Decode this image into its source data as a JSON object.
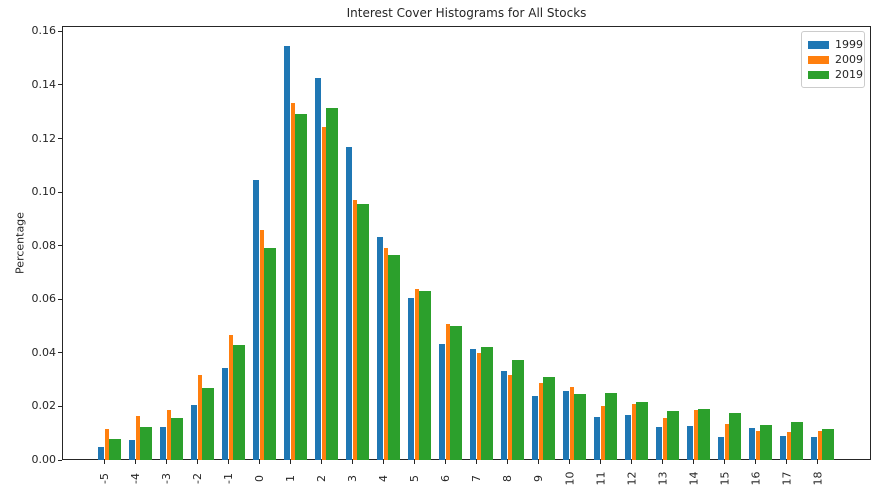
{
  "chart_data": {
    "type": "bar",
    "title": "Interest Cover Histograms for All Stocks",
    "xlabel": "",
    "ylabel": "Percentage",
    "categories": [
      "-5",
      "-4",
      "-3",
      "-2",
      "-1",
      "0",
      "1",
      "2",
      "3",
      "4",
      "5",
      "6",
      "7",
      "8",
      "9",
      "10",
      "11",
      "12",
      "13",
      "14",
      "15",
      "16",
      "17",
      "18"
    ],
    "series": [
      {
        "name": "1999",
        "color": "#1f77b4",
        "values": [
          0.005,
          0.0075,
          0.0125,
          0.0205,
          0.0343,
          0.1045,
          0.1547,
          0.1427,
          0.1168,
          0.0832,
          0.0604,
          0.0434,
          0.0414,
          0.0332,
          0.0238,
          0.0256,
          0.0162,
          0.0167,
          0.0122,
          0.0126,
          0.0086,
          0.0119,
          0.0089,
          0.0085
        ]
      },
      {
        "name": "2009",
        "color": "#ff7f0e",
        "values": [
          0.0117,
          0.0163,
          0.0185,
          0.0316,
          0.0468,
          0.0858,
          0.1334,
          0.1242,
          0.0971,
          0.079,
          0.0639,
          0.0507,
          0.0398,
          0.0319,
          0.0287,
          0.0272,
          0.0203,
          0.0208,
          0.0155,
          0.0188,
          0.0133,
          0.0108,
          0.0103,
          0.011
        ]
      },
      {
        "name": "2019",
        "color": "#2ca02c",
        "values": [
          0.0077,
          0.0122,
          0.0158,
          0.0268,
          0.0428,
          0.0793,
          0.129,
          0.1315,
          0.0956,
          0.0764,
          0.0632,
          0.0502,
          0.0422,
          0.0372,
          0.0311,
          0.0247,
          0.0249,
          0.0217,
          0.0184,
          0.019,
          0.0174,
          0.013,
          0.0143,
          0.0116
        ]
      }
    ],
    "ylim": [
      0,
      0.162
    ],
    "yticks": [
      0.0,
      0.02,
      0.04,
      0.06,
      0.08,
      0.1,
      0.12,
      0.14,
      0.16
    ],
    "grid": false,
    "legend_position": "upper right",
    "xtick_rotation": 90
  }
}
